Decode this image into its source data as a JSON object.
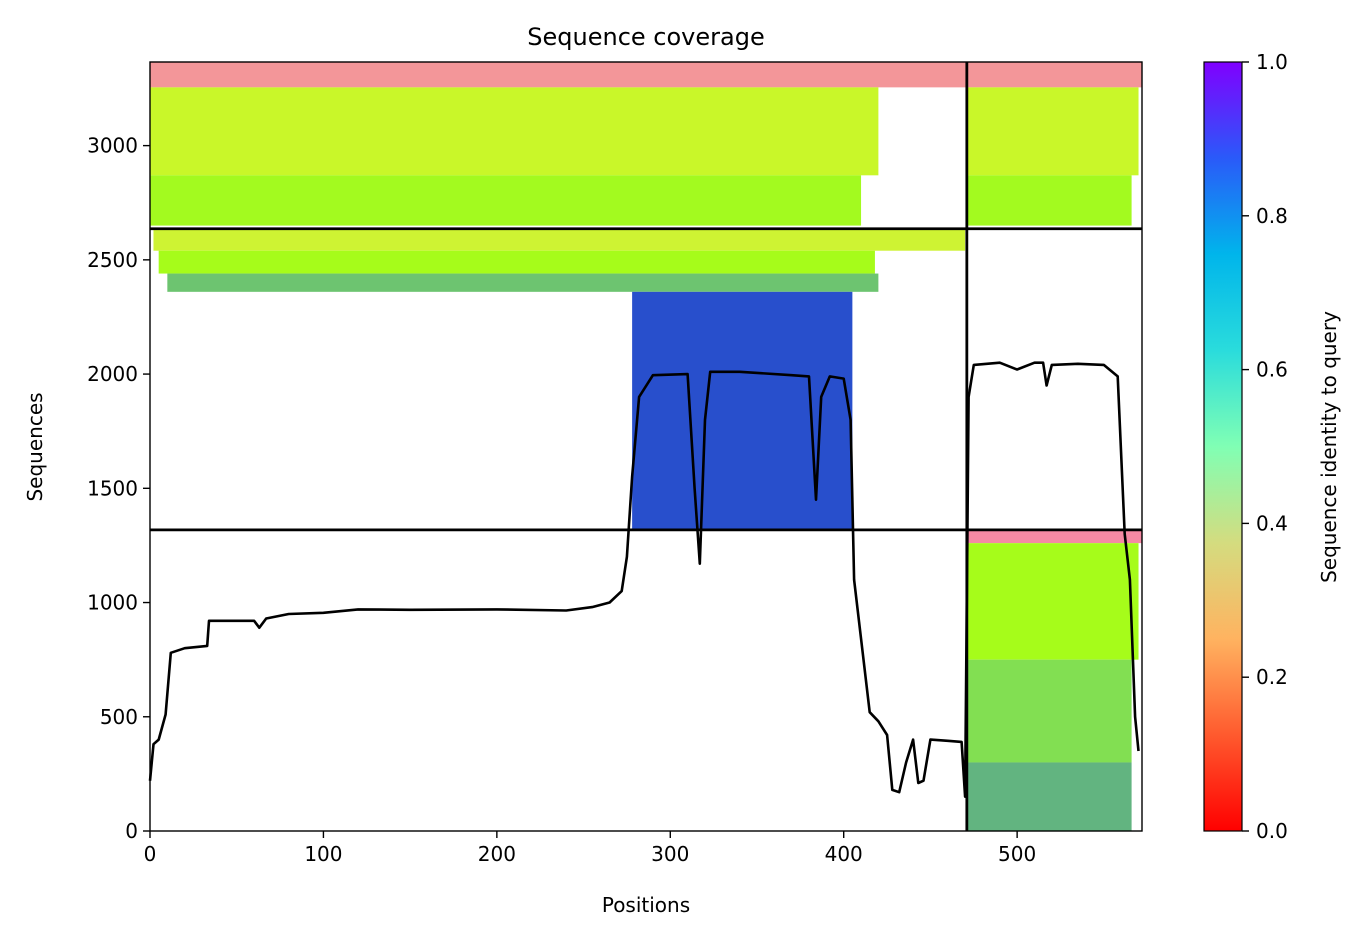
{
  "chart_data": {
    "type": "heatmap",
    "title": "Sequence coverage",
    "xlabel": "Positions",
    "ylabel": "Sequences",
    "xlim": [
      0,
      572
    ],
    "ylim": [
      0,
      3366
    ],
    "xticks": [
      0,
      100,
      200,
      300,
      400,
      500
    ],
    "yticks": [
      0,
      500,
      1000,
      1500,
      2000,
      2500,
      3000
    ],
    "colorbar": {
      "label": "Sequence identity to query",
      "range": [
        0.0,
        1.0
      ],
      "ticks": [
        "0.0",
        "0.2",
        "0.4",
        "0.6",
        "0.8",
        "1.0"
      ],
      "colormap": "rainbow"
    },
    "separators": {
      "vertical_x": [
        471
      ],
      "horizontal_y": [
        1318,
        2636
      ]
    },
    "blocks": [
      {
        "x_range": [
          0,
          471
        ],
        "y_range": [
          2636,
          3366
        ],
        "bands": [
          {
            "x_range": [
              0,
              471
            ],
            "y_range": [
              3255,
              3366
            ],
            "identity": 0.8
          },
          {
            "x_range": [
              0,
              420
            ],
            "y_range": [
              2870,
              3255
            ],
            "identity": 0.58
          },
          {
            "x_range": [
              0,
              410
            ],
            "y_range": [
              2650,
              2870
            ],
            "identity": 0.44
          }
        ]
      },
      {
        "x_range": [
          471,
          572
        ],
        "y_range": [
          2636,
          3366
        ],
        "bands": [
          {
            "x_range": [
              471,
              572
            ],
            "y_range": [
              3255,
              3366
            ],
            "identity": 0.8
          },
          {
            "x_range": [
              471,
              570
            ],
            "y_range": [
              2870,
              3255
            ],
            "identity": 0.58
          },
          {
            "x_range": [
              471,
              566
            ],
            "y_range": [
              2650,
              2870
            ],
            "identity": 0.44
          }
        ]
      },
      {
        "x_range": [
          0,
          471
        ],
        "y_range": [
          1318,
          2636
        ],
        "bands": [
          {
            "x_range": [
              2,
              470
            ],
            "y_range": [
              2540,
              2636
            ],
            "identity": 0.6
          },
          {
            "x_range": [
              5,
              418
            ],
            "y_range": [
              2440,
              2540
            ],
            "identity": 0.45
          },
          {
            "x_range": [
              10,
              420
            ],
            "y_range": [
              2360,
              2440
            ],
            "identity": 0.28
          },
          {
            "x_range": [
              278,
              405
            ],
            "y_range": [
              1318,
              2360
            ],
            "identity": 0.1
          }
        ]
      },
      {
        "x_range": [
          471,
          572
        ],
        "y_range": [
          0,
          1318
        ],
        "bands": [
          {
            "x_range": [
              471,
              572
            ],
            "y_range": [
              1260,
              1318
            ],
            "identity": 0.82
          },
          {
            "x_range": [
              471,
              570
            ],
            "y_range": [
              750,
              1260
            ],
            "identity": 0.45
          },
          {
            "x_range": [
              471,
              566
            ],
            "y_range": [
              300,
              750
            ],
            "identity": 0.34
          },
          {
            "x_range": [
              471,
              566
            ],
            "y_range": [
              0,
              300
            ],
            "identity": 0.25
          }
        ]
      }
    ],
    "coverage_line": {
      "x": [
        0,
        2,
        5,
        9,
        12,
        20,
        33,
        34,
        50,
        60,
        63,
        67,
        80,
        100,
        120,
        150,
        200,
        240,
        255,
        265,
        272,
        275,
        278,
        282,
        290,
        310,
        314,
        317,
        320,
        323,
        340,
        370,
        380,
        384,
        387,
        392,
        400,
        404,
        406,
        415,
        420,
        425,
        428,
        432,
        436,
        440,
        443,
        446,
        450,
        460,
        468,
        470,
        472,
        475,
        490,
        500,
        510,
        515,
        517,
        520,
        535,
        550,
        558,
        562,
        565,
        568,
        570
      ],
      "y": [
        220,
        380,
        400,
        510,
        780,
        800,
        810,
        920,
        920,
        920,
        890,
        930,
        950,
        955,
        970,
        968,
        970,
        965,
        980,
        1000,
        1050,
        1200,
        1550,
        1900,
        1995,
        2000,
        1500,
        1170,
        1800,
        2010,
        2010,
        1995,
        1990,
        1450,
        1900,
        1990,
        1980,
        1800,
        1100,
        520,
        480,
        420,
        180,
        170,
        300,
        400,
        210,
        220,
        400,
        395,
        390,
        150,
        1900,
        2040,
        2050,
        2020,
        2050,
        2050,
        1950,
        2040,
        2045,
        2040,
        1990,
        1300,
        1100,
        500,
        350
      ]
    }
  }
}
